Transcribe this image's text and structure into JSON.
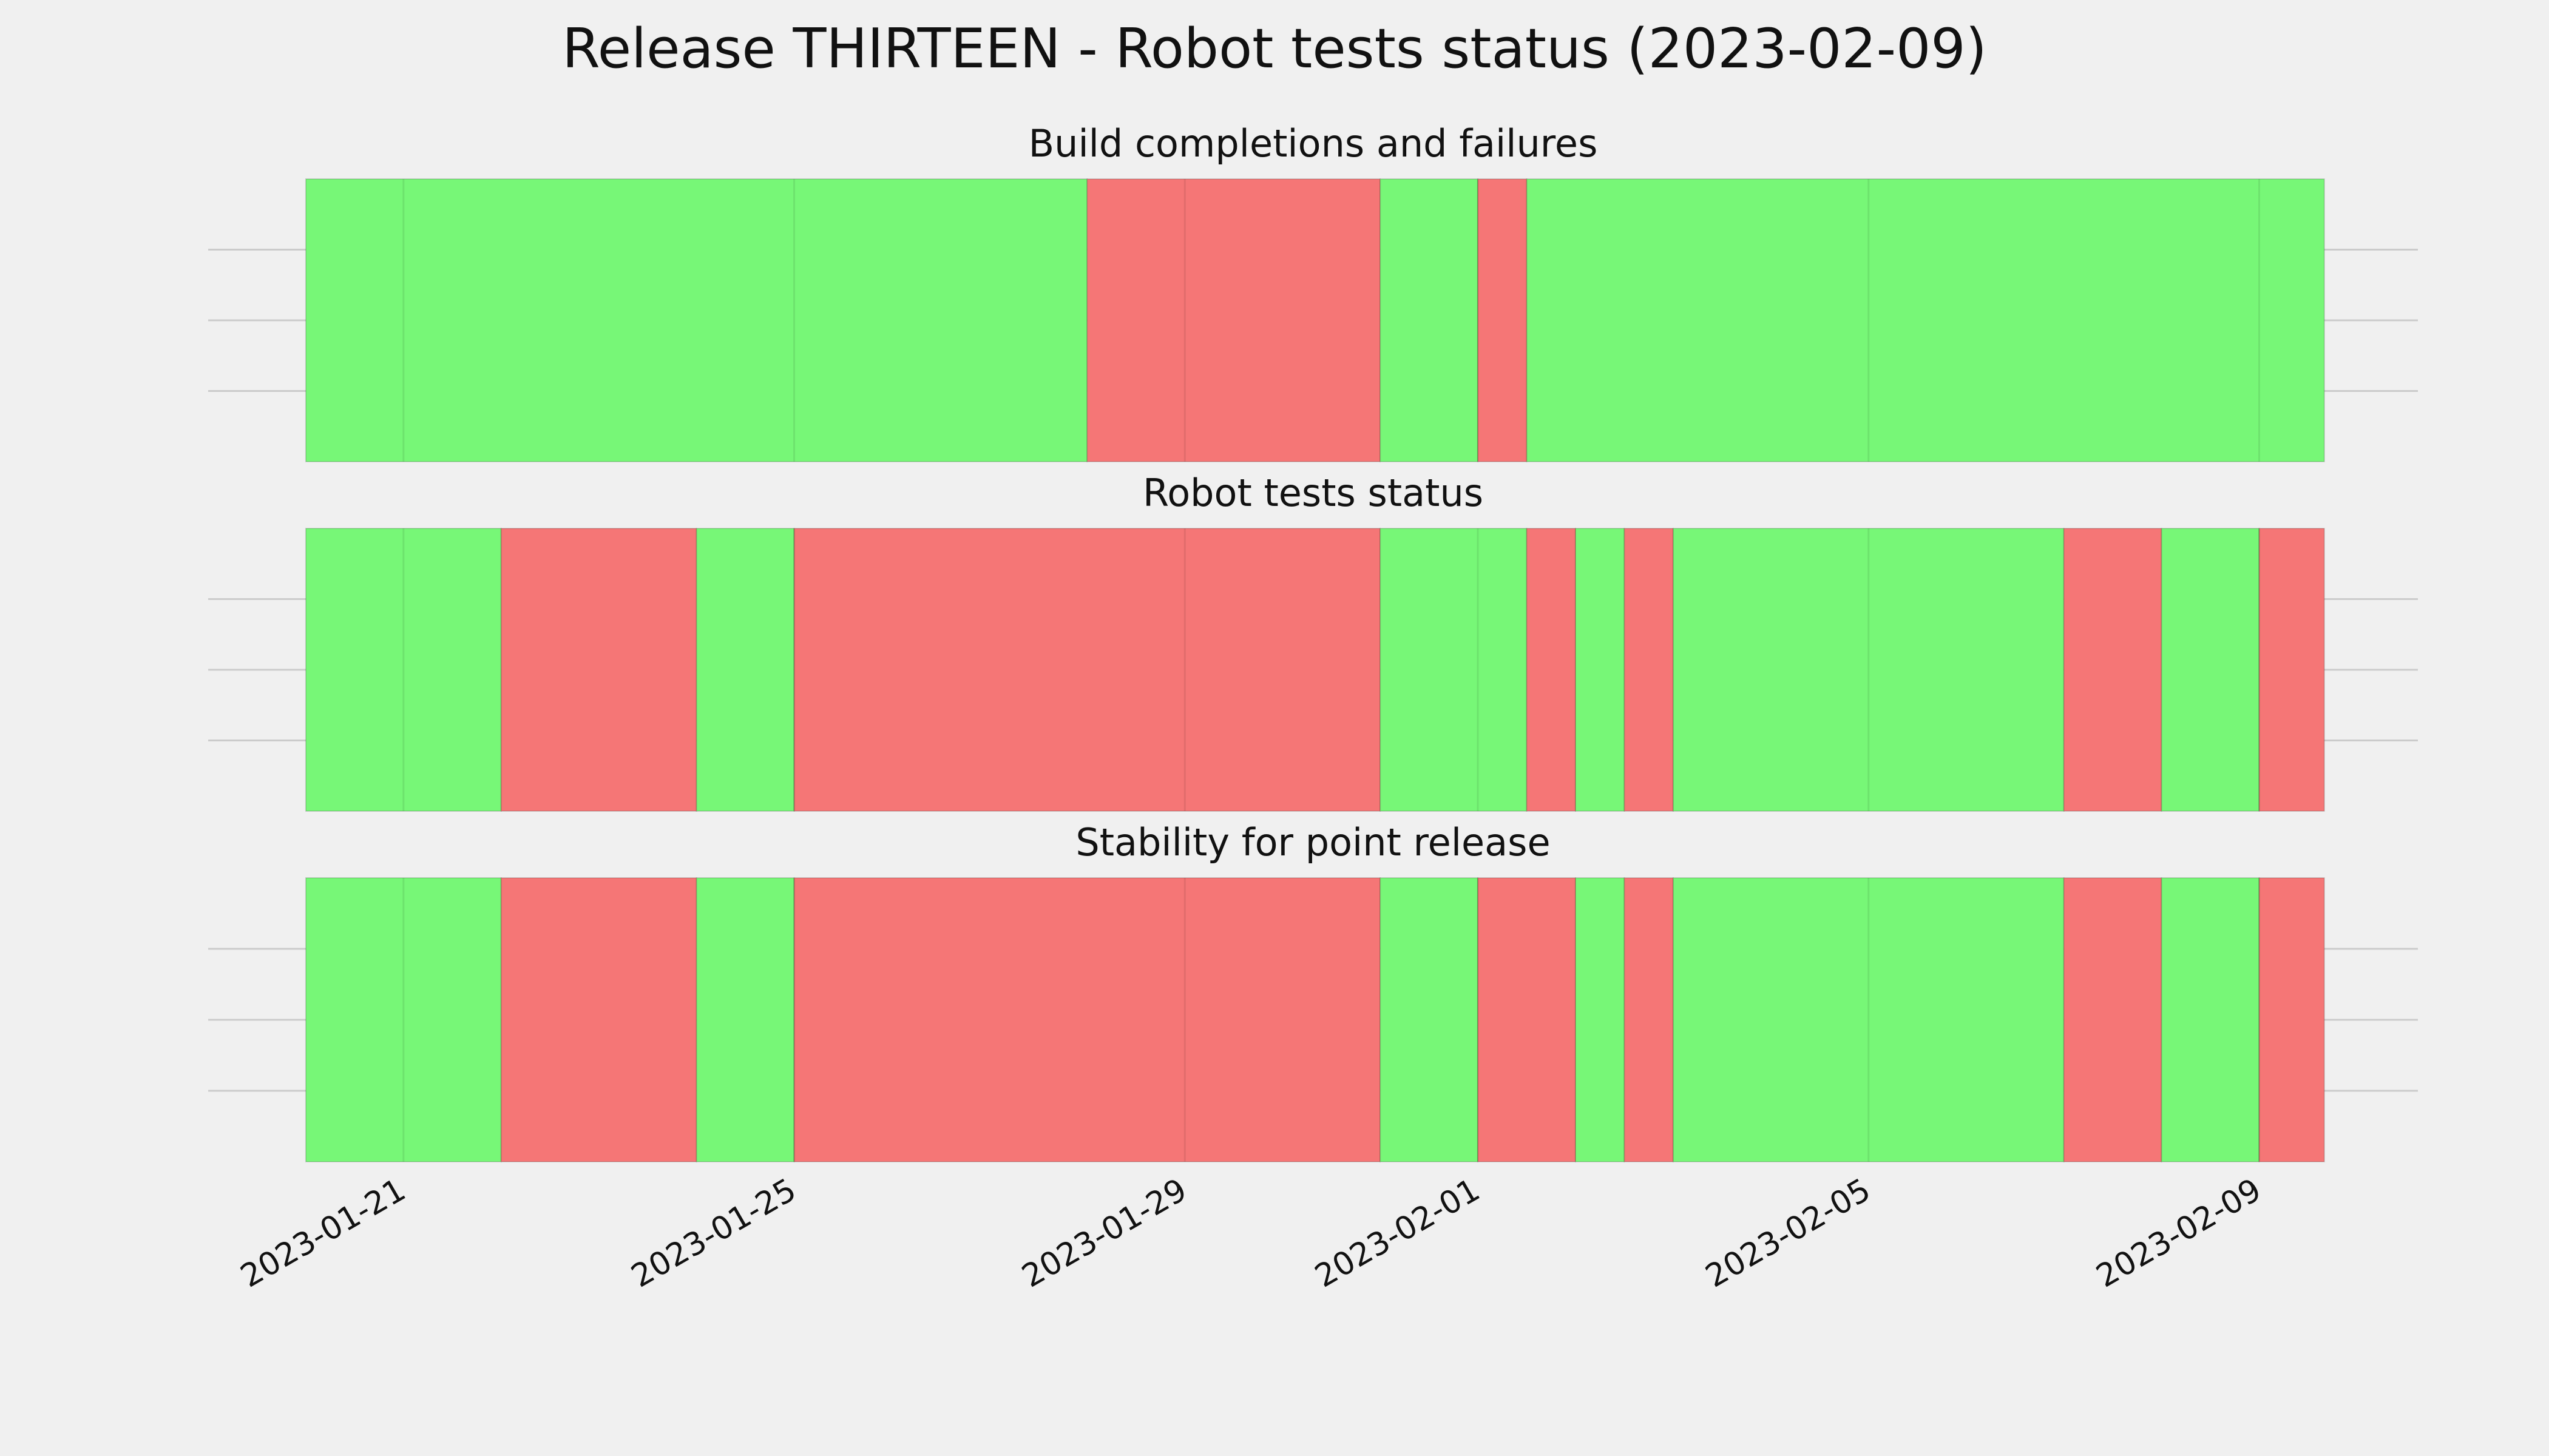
{
  "title": "Release THIRTEEN - Robot tests status (2023-02-09)",
  "chart_data": [
    {
      "type": "timeline",
      "title": "Build completions and failures",
      "grid": true,
      "xlim": [
        "2023-01-19T00:00",
        "2023-02-10T15:00"
      ],
      "xticks": [
        "2023-01-21",
        "2023-01-25",
        "2023-01-29",
        "2023-02-01",
        "2023-02-05",
        "2023-02-09"
      ],
      "spans": [
        {
          "start": "2023-01-20T00:00",
          "end": "2023-01-28T00:00",
          "color": "#77f777"
        },
        {
          "start": "2023-01-28T00:00",
          "end": "2023-01-31T00:00",
          "color": "#f57676"
        },
        {
          "start": "2023-01-31T00:00",
          "end": "2023-02-01T00:00",
          "color": "#77f777"
        },
        {
          "start": "2023-02-01T00:00",
          "end": "2023-02-01T12:00",
          "color": "#f57676"
        },
        {
          "start": "2023-02-01T12:00",
          "end": "2023-02-09T16:00",
          "color": "#77f777"
        }
      ]
    },
    {
      "type": "timeline",
      "title": "Robot tests status",
      "grid": true,
      "xlim": [
        "2023-01-19T00:00",
        "2023-02-10T15:00"
      ],
      "xticks": [
        "2023-01-21",
        "2023-01-25",
        "2023-01-29",
        "2023-02-01",
        "2023-02-05",
        "2023-02-09"
      ],
      "spans": [
        {
          "start": "2023-01-20T00:00",
          "end": "2023-01-22T00:00",
          "color": "#77f777"
        },
        {
          "start": "2023-01-22T00:00",
          "end": "2023-01-24T00:00",
          "color": "#f57676"
        },
        {
          "start": "2023-01-24T00:00",
          "end": "2023-01-25T00:00",
          "color": "#77f777"
        },
        {
          "start": "2023-01-25T00:00",
          "end": "2023-01-31T00:00",
          "color": "#f57676"
        },
        {
          "start": "2023-01-31T00:00",
          "end": "2023-02-01T12:00",
          "color": "#77f777"
        },
        {
          "start": "2023-02-01T12:00",
          "end": "2023-02-02T00:00",
          "color": "#f57676"
        },
        {
          "start": "2023-02-02T00:00",
          "end": "2023-02-02T12:00",
          "color": "#77f777"
        },
        {
          "start": "2023-02-02T12:00",
          "end": "2023-02-03T00:00",
          "color": "#f57676"
        },
        {
          "start": "2023-02-03T00:00",
          "end": "2023-02-07T00:00",
          "color": "#77f777"
        },
        {
          "start": "2023-02-07T00:00",
          "end": "2023-02-08T00:00",
          "color": "#f57676"
        },
        {
          "start": "2023-02-08T00:00",
          "end": "2023-02-09T00:00",
          "color": "#77f777"
        },
        {
          "start": "2023-02-09T00:00",
          "end": "2023-02-09T16:00",
          "color": "#f57676"
        }
      ]
    },
    {
      "type": "timeline",
      "title": "Stability for point release",
      "grid": true,
      "xlim": [
        "2023-01-19T00:00",
        "2023-02-10T15:00"
      ],
      "xticks": [
        "2023-01-21",
        "2023-01-25",
        "2023-01-29",
        "2023-02-01",
        "2023-02-05",
        "2023-02-09"
      ],
      "spans": [
        {
          "start": "2023-01-20T00:00",
          "end": "2023-01-22T00:00",
          "color": "#77f777"
        },
        {
          "start": "2023-01-22T00:00",
          "end": "2023-01-24T00:00",
          "color": "#f57676"
        },
        {
          "start": "2023-01-24T00:00",
          "end": "2023-01-25T00:00",
          "color": "#77f777"
        },
        {
          "start": "2023-01-25T00:00",
          "end": "2023-01-31T00:00",
          "color": "#f57676"
        },
        {
          "start": "2023-01-31T00:00",
          "end": "2023-02-01T00:00",
          "color": "#77f777"
        },
        {
          "start": "2023-02-01T00:00",
          "end": "2023-02-02T00:00",
          "color": "#f57676"
        },
        {
          "start": "2023-02-02T00:00",
          "end": "2023-02-02T12:00",
          "color": "#77f777"
        },
        {
          "start": "2023-02-02T12:00",
          "end": "2023-02-03T00:00",
          "color": "#f57676"
        },
        {
          "start": "2023-02-03T00:00",
          "end": "2023-02-07T00:00",
          "color": "#77f777"
        },
        {
          "start": "2023-02-07T00:00",
          "end": "2023-02-08T00:00",
          "color": "#f57676"
        },
        {
          "start": "2023-02-08T00:00",
          "end": "2023-02-09T00:00",
          "color": "#77f777"
        },
        {
          "start": "2023-02-09T00:00",
          "end": "2023-02-09T16:00",
          "color": "#f57676"
        }
      ]
    }
  ]
}
